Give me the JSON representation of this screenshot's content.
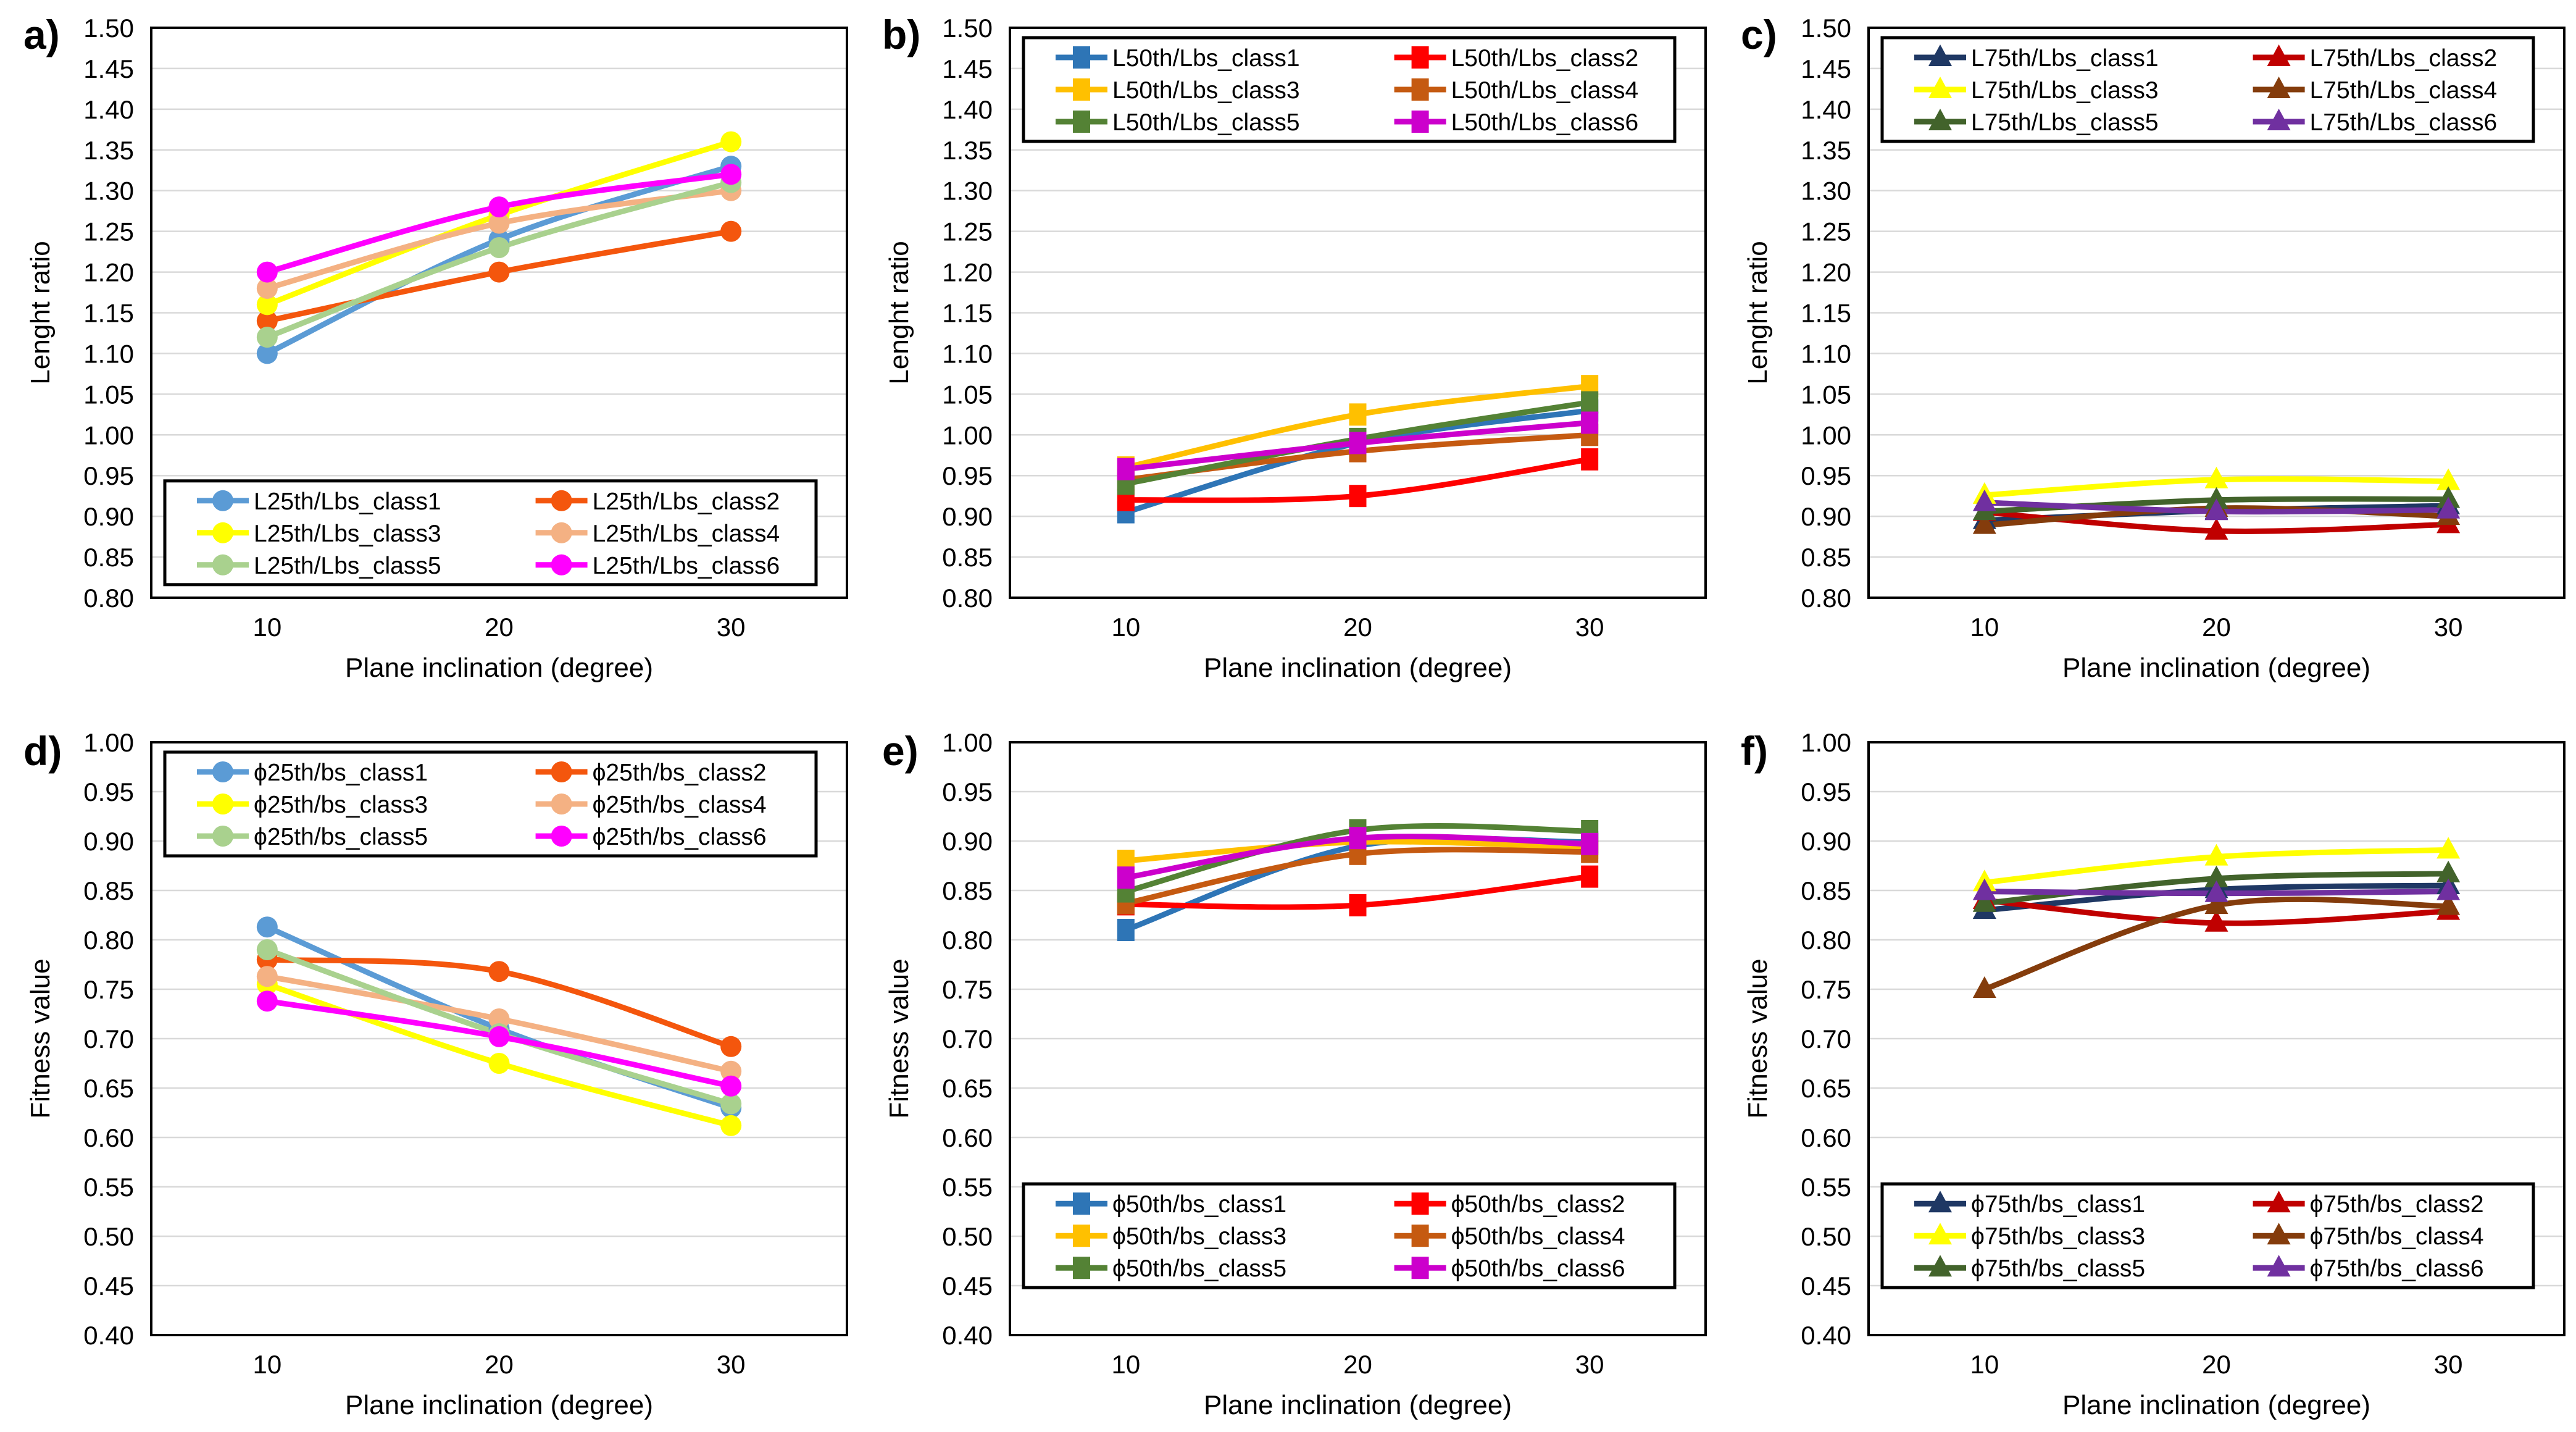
{
  "figure": {
    "background": "#FFFFFF",
    "grid_color": "#D9D9D9",
    "axis_color": "#000000",
    "x_axis_title": "Plane inclination (degree)",
    "top_row_y_title": "Lenght ratio",
    "bottom_row_y_title": "Fitness value"
  },
  "chart_data": [
    {
      "panel_label": "a)",
      "type": "line",
      "marker": "circle",
      "x_categories": [
        "10",
        "20",
        "30"
      ],
      "xlabel": "Plane inclination (degree)",
      "ylabel": "Lenght ratio",
      "ylim": [
        0.8,
        1.5
      ],
      "ytick_step": 0.05,
      "grid": true,
      "legend_position": "inside-lower",
      "series": [
        {
          "name": "L25th/Lbs_class1",
          "color": "#5B9BD5",
          "values": [
            1.1,
            1.24,
            1.33
          ]
        },
        {
          "name": "L25th/Lbs_class2",
          "color": "#F4560D",
          "values": [
            1.14,
            1.2,
            1.25
          ]
        },
        {
          "name": "L25th/Lbs_class3",
          "color": "#FFFF00",
          "values": [
            1.16,
            1.27,
            1.36
          ]
        },
        {
          "name": "L25th/Lbs_class4",
          "color": "#F4B183",
          "values": [
            1.18,
            1.26,
            1.3
          ]
        },
        {
          "name": "L25th/Lbs_class5",
          "color": "#A9D18E",
          "values": [
            1.12,
            1.23,
            1.31
          ]
        },
        {
          "name": "L25th/Lbs_class6",
          "color": "#FF00FF",
          "values": [
            1.2,
            1.28,
            1.32
          ]
        }
      ]
    },
    {
      "panel_label": "b)",
      "type": "line",
      "marker": "square",
      "x_categories": [
        "10",
        "20",
        "30"
      ],
      "xlabel": "Plane inclination (degree)",
      "ylabel": "Lenght ratio",
      "ylim": [
        0.8,
        1.5
      ],
      "ytick_step": 0.05,
      "grid": true,
      "legend_position": "inside-top",
      "series": [
        {
          "name": "L50th/Lbs_class1",
          "color": "#2E75B6",
          "values": [
            0.905,
            0.99,
            1.03
          ]
        },
        {
          "name": "L50th/Lbs_class2",
          "color": "#FF0000",
          "values": [
            0.92,
            0.925,
            0.97
          ]
        },
        {
          "name": "L50th/Lbs_class3",
          "color": "#FFC000",
          "values": [
            0.96,
            1.025,
            1.06
          ]
        },
        {
          "name": "L50th/Lbs_class4",
          "color": "#C55A11",
          "values": [
            0.945,
            0.98,
            1.0
          ]
        },
        {
          "name": "L50th/Lbs_class5",
          "color": "#548235",
          "values": [
            0.94,
            0.995,
            1.04
          ]
        },
        {
          "name": "L50th/Lbs_class6",
          "color": "#CC00CC",
          "values": [
            0.958,
            0.99,
            1.015
          ]
        }
      ]
    },
    {
      "panel_label": "c)",
      "type": "line",
      "marker": "triangle",
      "x_categories": [
        "10",
        "20",
        "30"
      ],
      "xlabel": "Plane inclination (degree)",
      "ylabel": "Lenght ratio",
      "ylim": [
        0.8,
        1.5
      ],
      "ytick_step": 0.05,
      "grid": true,
      "legend_position": "inside-top",
      "series": [
        {
          "name": "L75th/Lbs_class1",
          "color": "#1F3864",
          "values": [
            0.895,
            0.907,
            0.913
          ]
        },
        {
          "name": "L75th/Lbs_class2",
          "color": "#C00000",
          "values": [
            0.905,
            0.882,
            0.89
          ]
        },
        {
          "name": "L75th/Lbs_class3",
          "color": "#FFFF00",
          "values": [
            0.926,
            0.945,
            0.943
          ]
        },
        {
          "name": "L75th/Lbs_class4",
          "color": "#843C0C",
          "values": [
            0.889,
            0.91,
            0.9
          ]
        },
        {
          "name": "L75th/Lbs_class5",
          "color": "#42632B",
          "values": [
            0.906,
            0.92,
            0.921
          ]
        },
        {
          "name": "L75th/Lbs_class6",
          "color": "#7030A0",
          "values": [
            0.917,
            0.906,
            0.908
          ]
        }
      ]
    },
    {
      "panel_label": "d)",
      "type": "line",
      "marker": "circle",
      "x_categories": [
        "10",
        "20",
        "30"
      ],
      "xlabel": "Plane inclination (degree)",
      "ylabel": "Fitness value",
      "ylim": [
        0.4,
        1.0
      ],
      "ytick_step": 0.05,
      "grid": true,
      "legend_position": "inside-top",
      "series": [
        {
          "name": "ϕ25th/bs_class1",
          "color": "#5B9BD5",
          "values": [
            0.813,
            0.71,
            0.63
          ]
        },
        {
          "name": "ϕ25th/bs_class2",
          "color": "#F4560D",
          "values": [
            0.78,
            0.768,
            0.692
          ]
        },
        {
          "name": "ϕ25th/bs_class3",
          "color": "#FFFF00",
          "values": [
            0.755,
            0.675,
            0.612
          ]
        },
        {
          "name": "ϕ25th/bs_class4",
          "color": "#F4B183",
          "values": [
            0.763,
            0.72,
            0.667
          ]
        },
        {
          "name": "ϕ25th/bs_class5",
          "color": "#A9D18E",
          "values": [
            0.79,
            0.705,
            0.634
          ]
        },
        {
          "name": "ϕ25th/bs_class6",
          "color": "#FF00FF",
          "values": [
            0.738,
            0.702,
            0.652
          ]
        }
      ]
    },
    {
      "panel_label": "e)",
      "type": "line",
      "marker": "square",
      "x_categories": [
        "10",
        "20",
        "30"
      ],
      "xlabel": "Plane inclination (degree)",
      "ylabel": "Fitness value",
      "ylim": [
        0.4,
        1.0
      ],
      "ytick_step": 0.05,
      "grid": true,
      "legend_position": "inside-bottom",
      "series": [
        {
          "name": "ϕ50th/bs_class1",
          "color": "#2E75B6",
          "values": [
            0.81,
            0.895,
            0.899
          ]
        },
        {
          "name": "ϕ50th/bs_class2",
          "color": "#FF0000",
          "values": [
            0.836,
            0.835,
            0.864
          ]
        },
        {
          "name": "ϕ50th/bs_class3",
          "color": "#FFC000",
          "values": [
            0.88,
            0.899,
            0.893
          ]
        },
        {
          "name": "ϕ50th/bs_class4",
          "color": "#C55A11",
          "values": [
            0.837,
            0.887,
            0.889
          ]
        },
        {
          "name": "ϕ50th/bs_class5",
          "color": "#548235",
          "values": [
            0.849,
            0.911,
            0.91
          ]
        },
        {
          "name": "ϕ50th/bs_class6",
          "color": "#CC00CC",
          "values": [
            0.863,
            0.903,
            0.897
          ]
        }
      ]
    },
    {
      "panel_label": "f)",
      "type": "line",
      "marker": "triangle",
      "x_categories": [
        "10",
        "20",
        "30"
      ],
      "xlabel": "Plane inclination (degree)",
      "ylabel": "Fitness value",
      "ylim": [
        0.4,
        1.0
      ],
      "ytick_step": 0.05,
      "grid": true,
      "legend_position": "inside-bottom",
      "series": [
        {
          "name": "ϕ75th/bs_class1",
          "color": "#1F3864",
          "values": [
            0.83,
            0.851,
            0.855
          ]
        },
        {
          "name": "ϕ75th/bs_class2",
          "color": "#C00000",
          "values": [
            0.84,
            0.817,
            0.829
          ]
        },
        {
          "name": "ϕ75th/bs_class3",
          "color": "#FFFF00",
          "values": [
            0.858,
            0.884,
            0.891
          ]
        },
        {
          "name": "ϕ75th/bs_class4",
          "color": "#843C0C",
          "values": [
            0.75,
            0.835,
            0.834
          ]
        },
        {
          "name": "ϕ75th/bs_class5",
          "color": "#42632B",
          "values": [
            0.837,
            0.862,
            0.867
          ]
        },
        {
          "name": "ϕ75th/bs_class6",
          "color": "#7030A0",
          "values": [
            0.849,
            0.847,
            0.849
          ]
        }
      ]
    }
  ]
}
